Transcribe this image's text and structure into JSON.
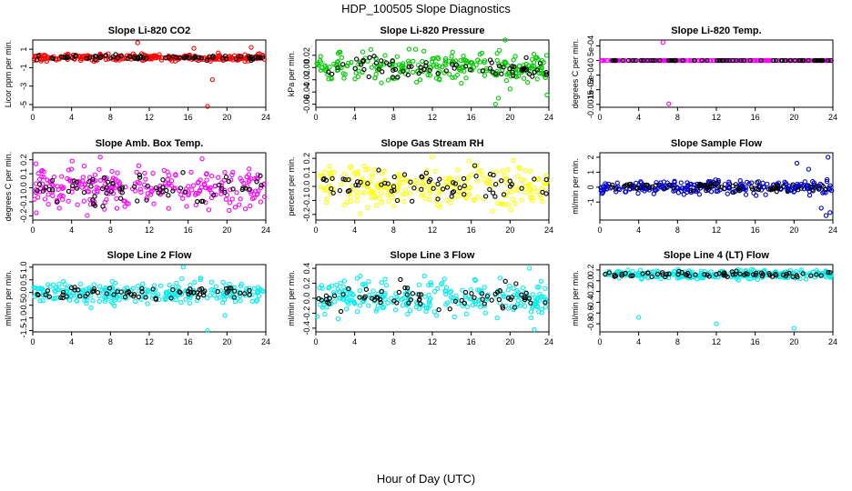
{
  "figure": {
    "title": "HDP_100505  Slope Diagnostics",
    "xlabel": "Hour of Day (UTC)"
  },
  "chart_data": [
    {
      "type": "scatter",
      "title": "Slope Li-820 CO2",
      "ylabel": "Licor ppm per min.",
      "xlim": [
        0,
        24
      ],
      "xticks": [
        0,
        4,
        8,
        12,
        16,
        20,
        24
      ],
      "ylim": [
        -5.3,
        2
      ],
      "yticks": [
        1,
        -1,
        -3,
        -5
      ],
      "ytick_labels": [
        "1",
        "-1",
        "-3",
        "-5"
      ],
      "color": "#ff0000",
      "spread": 0.18,
      "outliers": [
        {
          "x": 10.8,
          "y": 1.7
        },
        {
          "x": 16.6,
          "y": 1.1
        },
        {
          "x": 19.1,
          "y": 0.6
        },
        {
          "x": 22.5,
          "y": 1.2
        },
        {
          "x": 18.0,
          "y": -5.2
        },
        {
          "x": 18.5,
          "y": -2.3
        }
      ]
    },
    {
      "type": "scatter",
      "title": "Slope Li-820 Pressure",
      "ylabel": "kPa per min.",
      "xlim": [
        0,
        24
      ],
      "xticks": [
        0,
        4,
        8,
        12,
        16,
        20,
        24
      ],
      "ylim": [
        -0.065,
        0.045
      ],
      "yticks": [
        0.02,
        0.0,
        -0.02,
        -0.04,
        -0.06
      ],
      "ytick_labels": [
        "0.02",
        "0.00",
        "-0.02",
        "-0.04",
        "-0.06"
      ],
      "color": "#00cc00",
      "spread": 0.012,
      "outliers": [
        {
          "x": 19.5,
          "y": 0.045
        },
        {
          "x": 18.5,
          "y": -0.06
        },
        {
          "x": 18.8,
          "y": -0.05
        },
        {
          "x": 23.8,
          "y": -0.045
        },
        {
          "x": 20.0,
          "y": -0.035
        }
      ]
    },
    {
      "type": "scatter",
      "title": "Slope Li-820 Temp.",
      "ylabel": "degrees C per min.",
      "xlim": [
        0,
        24
      ],
      "xticks": [
        0,
        4,
        8,
        12,
        16,
        20,
        24
      ],
      "ylim": [
        -0.0016,
        0.0007
      ],
      "yticks": [
        0.0005,
        0,
        -0.0005,
        -0.001,
        -0.0015
      ],
      "ytick_labels": [
        "5e-04",
        "0",
        "-5e-04",
        "-1e-03",
        "-0.0015"
      ],
      "color": "#ff00ff",
      "spread": 0.0,
      "outliers": [
        {
          "x": 6.5,
          "y": 0.00062
        },
        {
          "x": 7.1,
          "y": -0.00148
        }
      ]
    },
    {
      "type": "scatter",
      "title": "Slope Amb. Box Temp.",
      "ylabel": "degrees C per min.",
      "xlim": [
        0,
        24
      ],
      "xticks": [
        0,
        4,
        8,
        12,
        16,
        20,
        24
      ],
      "ylim": [
        -0.23,
        0.25
      ],
      "yticks": [
        0.2,
        0.1,
        0.0,
        -0.1,
        -0.2
      ],
      "ytick_labels": [
        "0.2",
        "0.1",
        "0.0",
        "-0.1",
        "-0.2"
      ],
      "color": "#ff00ff",
      "spread": 0.075,
      "outliers": []
    },
    {
      "type": "scatter",
      "title": "Slope Gas Stream RH",
      "ylabel": "percent per min.",
      "xlim": [
        0,
        24
      ],
      "xticks": [
        0,
        4,
        8,
        12,
        16,
        20,
        24
      ],
      "ylim": [
        -0.24,
        0.24
      ],
      "yticks": [
        0.2,
        0.1,
        0.0,
        -0.1,
        -0.2
      ],
      "ytick_labels": [
        "0.2",
        "0.1",
        "0.0",
        "-0.1",
        "-0.2"
      ],
      "color": "#ffff00",
      "spread": 0.075,
      "outliers": []
    },
    {
      "type": "scatter",
      "title": "Slope Sample Flow",
      "ylabel": "ml/min per min.",
      "xlim": [
        0,
        24
      ],
      "xticks": [
        0,
        4,
        8,
        12,
        16,
        20,
        24
      ],
      "ylim": [
        -2.2,
        2.3
      ],
      "yticks": [
        2,
        1,
        0,
        -1
      ],
      "ytick_labels": [
        "2",
        "1",
        "0",
        "-1"
      ],
      "color": "#0000cc",
      "spread": 0.22,
      "outliers": [
        {
          "x": 20.3,
          "y": 1.6
        },
        {
          "x": 23.5,
          "y": 2.0
        },
        {
          "x": 23.3,
          "y": -1.9
        },
        {
          "x": 23.7,
          "y": -1.7
        },
        {
          "x": 22.8,
          "y": -1.4
        },
        {
          "x": 21.5,
          "y": 1.2
        }
      ]
    },
    {
      "type": "scatter",
      "title": "Slope Line 2 Flow",
      "ylabel": "ml/min per min.",
      "xlim": [
        0,
        24
      ],
      "xticks": [
        0,
        4,
        8,
        12,
        16,
        20,
        24
      ],
      "ylim": [
        -1.55,
        1.1
      ],
      "yticks": [
        1.0,
        0.5,
        0.0,
        -0.5,
        -1.0,
        -1.5
      ],
      "ytick_labels": [
        "1.0",
        "0.5",
        "0.0",
        "-0.5",
        "-1.0",
        "-1.5"
      ],
      "color": "#00eeee",
      "spread": 0.2,
      "outliers": [
        {
          "x": 15.5,
          "y": 1.0
        },
        {
          "x": 18.0,
          "y": -1.5
        },
        {
          "x": 19.8,
          "y": -0.9
        },
        {
          "x": 6.0,
          "y": -0.6
        }
      ]
    },
    {
      "type": "scatter",
      "title": "Slope Line 3 Flow",
      "ylabel": "ml/min per min.",
      "xlim": [
        0,
        24
      ],
      "xticks": [
        0,
        4,
        8,
        12,
        16,
        20,
        24
      ],
      "ylim": [
        -0.45,
        0.45
      ],
      "yticks": [
        0.4,
        0.2,
        0.0,
        -0.2,
        -0.4
      ],
      "ytick_labels": [
        "0.4",
        "0.2",
        "0.0",
        "-0.2",
        "-0.4"
      ],
      "color": "#00eeee",
      "spread": 0.12,
      "outliers": [
        {
          "x": 22.0,
          "y": 0.4
        },
        {
          "x": 22.5,
          "y": -0.42
        }
      ]
    },
    {
      "type": "scatter",
      "title": "Slope Line 4 (LT) Flow",
      "ylabel": "ml/min per min.",
      "xlim": [
        0,
        24
      ],
      "xticks": [
        0,
        4,
        8,
        12,
        16,
        20,
        24
      ],
      "ylim": [
        -0.95,
        0.3
      ],
      "yticks": [
        0.2,
        0.0,
        -0.2,
        -0.4,
        -0.6,
        -0.8
      ],
      "ytick_labels": [
        "0.2",
        "0.0",
        "-0.2",
        "-0.4",
        "-0.6",
        "-0.8"
      ],
      "color": "#00eeee",
      "spread": 0.04,
      "outliers": [
        {
          "x": 4.0,
          "y": -0.68
        },
        {
          "x": 12.0,
          "y": -0.8
        },
        {
          "x": 20.0,
          "y": -0.88
        }
      ]
    }
  ]
}
